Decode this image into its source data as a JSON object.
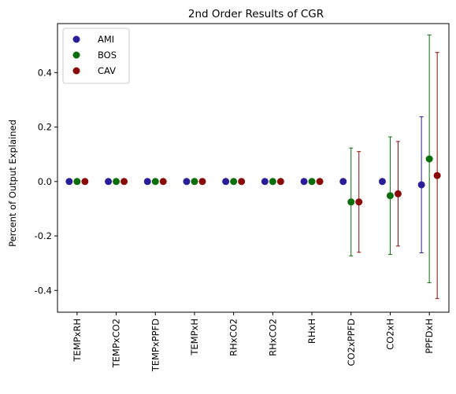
{
  "chart_data": {
    "type": "scatter",
    "title": "2nd Order Results of CGR",
    "xlabel": "",
    "ylabel": "Percent of Output Explained",
    "categories": [
      "TEMPxRH",
      "TEMPxCO2",
      "TEMPxPPFD",
      "TEMPxH",
      "RHxCO2",
      "RHxCO2",
      "RHxH",
      "CO2xPPFD",
      "CO2xH",
      "PPFDxH"
    ],
    "ylim": [
      -0.48,
      0.58
    ],
    "yticks": [
      -0.4,
      -0.2,
      0.0,
      0.2,
      0.4
    ],
    "legend_position": "top-left",
    "grid": false,
    "series": [
      {
        "name": "AMI",
        "color": "#2a1d9a",
        "values": [
          0,
          0,
          0,
          0,
          0,
          0,
          0,
          0,
          0,
          -0.012
        ],
        "errors": [
          null,
          null,
          null,
          null,
          null,
          null,
          null,
          null,
          null,
          0.25
        ]
      },
      {
        "name": "BOS",
        "color": "#0a6e0a",
        "values": [
          0,
          0,
          0,
          0,
          0,
          0,
          0,
          -0.075,
          -0.052,
          0.083
        ],
        "errors": [
          null,
          null,
          null,
          null,
          null,
          null,
          null,
          0.198,
          0.216,
          0.455
        ]
      },
      {
        "name": "CAV",
        "color": "#8a0a0a",
        "values": [
          0,
          0,
          0,
          0,
          0,
          0,
          0,
          -0.075,
          -0.045,
          0.022
        ],
        "errors": [
          null,
          null,
          null,
          null,
          null,
          null,
          null,
          0.185,
          0.192,
          0.452
        ]
      }
    ]
  }
}
